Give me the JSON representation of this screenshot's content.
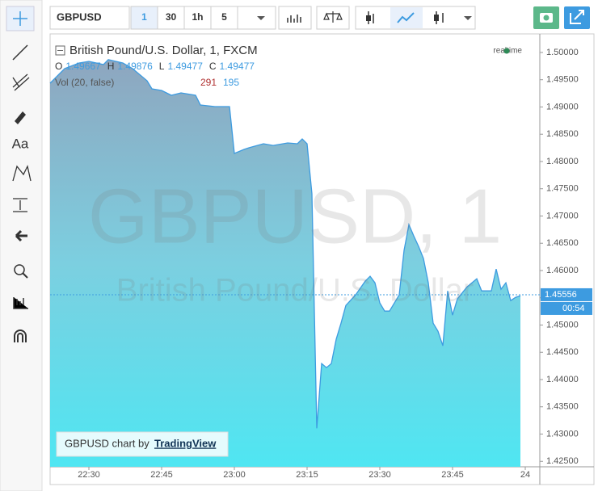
{
  "toolbar": {
    "symbol": "GBPUSD",
    "intervals": [
      "1",
      "30",
      "1h",
      "5"
    ]
  },
  "left_toolbar": {
    "text_tool": "Aa"
  },
  "chart_data": {
    "type": "area",
    "title": "British Pound/U.S. Dollar, 1, FXCM",
    "status": "realtime",
    "ohlc": [
      {
        "label": "O",
        "value": 1.49667
      },
      {
        "label": "H",
        "value": 1.49876
      },
      {
        "label": "L",
        "value": 1.49477
      },
      {
        "label": "C",
        "value": 1.49477
      }
    ],
    "volume_label": "Vol (20, false)",
    "volume_values": [
      291,
      195
    ],
    "watermark": "GBPUSD, 1",
    "watermark_subtitle": "British Pound/U.S. Dollar",
    "color": "#3d9be0",
    "x": [
      "22:22",
      "22:25",
      "22:28",
      "22:30",
      "22:33",
      "22:34",
      "22:37",
      "22:39",
      "22:42",
      "22:43",
      "22:45",
      "22:47",
      "22:49",
      "22:52",
      "22:53",
      "22:56",
      "22:59",
      "23:00",
      "23:02",
      "23:03",
      "23:06",
      "23:08",
      "23:11",
      "23:13",
      "23:14",
      "23:15",
      "23:16",
      "23:17",
      "23:18",
      "23:19",
      "23:20",
      "23:21",
      "23:22",
      "23:23",
      "23:25",
      "23:27",
      "23:28",
      "23:29",
      "23:30",
      "23:31",
      "23:32",
      "23:34",
      "23:35",
      "23:36",
      "23:37",
      "23:38",
      "23:39",
      "23:40",
      "23:41",
      "23:42",
      "23:43",
      "23:44",
      "23:45",
      "23:46",
      "23:48",
      "23:50",
      "23:51",
      "23:53",
      "23:54",
      "23:55",
      "23:56",
      "23:57",
      "23:58",
      "23:59"
    ],
    "values": [
      1.49437,
      1.49704,
      1.49807,
      1.49837,
      1.49778,
      1.49867,
      1.49807,
      1.49704,
      1.49481,
      1.49333,
      1.49303,
      1.49214,
      1.49259,
      1.49214,
      1.49036,
      1.49007,
      1.49007,
      1.48147,
      1.48221,
      1.48251,
      1.48325,
      1.48295,
      1.4834,
      1.48325,
      1.48414,
      1.48325,
      1.47406,
      1.43107,
      1.44293,
      1.44219,
      1.44293,
      1.44738,
      1.45034,
      1.4536,
      1.45553,
      1.45805,
      1.45894,
      1.45775,
      1.45405,
      1.45256,
      1.45256,
      1.45553,
      1.46368,
      1.46843,
      1.46635,
      1.46442,
      1.4622,
      1.45775,
      1.45034,
      1.44886,
      1.44619,
      1.45627,
      1.45182,
      1.45479,
      1.45701,
      1.45849,
      1.45627,
      1.45627,
      1.46027,
      1.45657,
      1.45775,
      1.45449,
      1.45508,
      1.45538
    ],
    "last_price": 1.45556,
    "countdown": "00:54",
    "xlim": [
      "22:22",
      "24:03"
    ],
    "xticks": [
      "22:30",
      "22:45",
      "23:00",
      "23:15",
      "23:30",
      "23:45",
      {
        "value": "24:00",
        "label": "24"
      }
    ],
    "ylim": [
      1.424,
      1.5034
    ],
    "yticks": [
      {
        "value": 1.425,
        "label": "1.42500"
      },
      {
        "value": 1.43,
        "label": "1.43000"
      },
      {
        "value": 1.435,
        "label": "1.43500"
      },
      {
        "value": 1.44,
        "label": "1.44000"
      },
      {
        "value": 1.445,
        "label": "1.44500"
      },
      {
        "value": 1.45,
        "label": "1.45000"
      },
      {
        "value": 1.455,
        "label": "1.45500"
      },
      {
        "value": 1.46,
        "label": "1.46000"
      },
      {
        "value": 1.465,
        "label": "1.46500"
      },
      {
        "value": 1.47,
        "label": "1.47000"
      },
      {
        "value": 1.475,
        "label": "1.47500"
      },
      {
        "value": 1.48,
        "label": "1.48000"
      },
      {
        "value": 1.485,
        "label": "1.48500"
      },
      {
        "value": 1.49,
        "label": "1.49000"
      },
      {
        "value": 1.495,
        "label": "1.49500"
      },
      {
        "value": 1.5,
        "label": "1.50000"
      }
    ],
    "grid": false
  },
  "attribution": {
    "text": "GBPUSD chart by",
    "link": "TradingView"
  }
}
